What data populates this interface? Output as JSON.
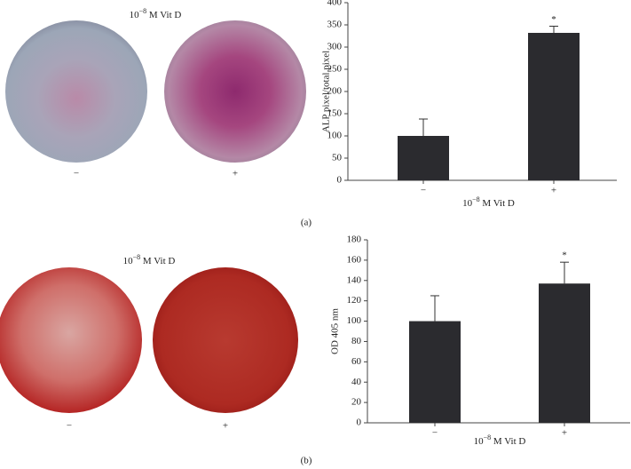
{
  "chart_data": [
    {
      "type": "bar",
      "panel_label": "(a)",
      "image_title": [
        "10",
        "−8",
        " M Vit D"
      ],
      "image_categories": [
        "−",
        "+"
      ],
      "ylabel": "ALP pixel/total pixel",
      "xlabel": [
        "10",
        "−8",
        " M Vit D"
      ],
      "categories": [
        "−",
        "+"
      ],
      "values": [
        100,
        332
      ],
      "errors": [
        38,
        15
      ],
      "significance": [
        null,
        "*"
      ],
      "color": "#2b2b2f",
      "ylim": [
        0,
        400
      ],
      "yticks": [
        0,
        50,
        100,
        150,
        200,
        250,
        300,
        350,
        400
      ]
    },
    {
      "type": "bar",
      "panel_label": "(b)",
      "image_title": [
        "10",
        "−8",
        " M Vit D"
      ],
      "image_categories": [
        "−",
        "+"
      ],
      "ylabel": "OD 405 nm",
      "xlabel": [
        "10",
        "−8",
        " M Vit D"
      ],
      "categories": [
        "−",
        "+"
      ],
      "values": [
        100,
        137
      ],
      "errors": [
        25,
        21
      ],
      "significance": [
        null,
        "*"
      ],
      "color": "#2b2b2f",
      "ylim": [
        0,
        180
      ],
      "yticks": [
        0,
        20,
        40,
        60,
        80,
        100,
        120,
        140,
        160,
        180
      ]
    }
  ]
}
